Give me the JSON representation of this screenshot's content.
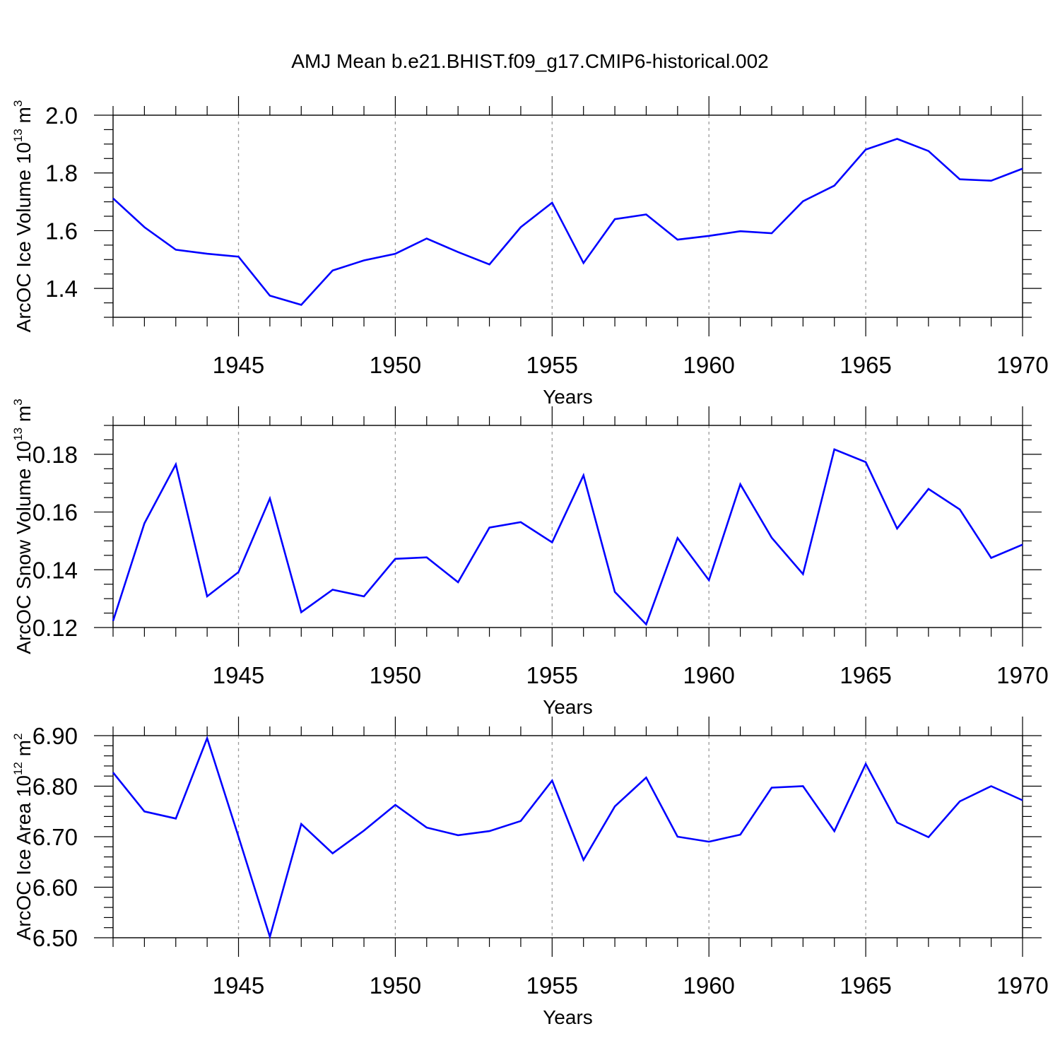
{
  "title": "AMJ Mean b.e21.BHIST.f09_g17.CMIP6-historical.002",
  "chart_data": [
    {
      "type": "line",
      "ylabel": {
        "text": "ArcOC Ice Volume 10",
        "sup": "13",
        "unit": " m",
        "unit_sup": "3"
      },
      "xlabel": "Years",
      "xlim": [
        1941,
        1970
      ],
      "ylim": [
        1.3,
        2.0
      ],
      "yticks": [
        1.4,
        1.6,
        1.8,
        2.0
      ],
      "ytick_labels": [
        "1.4",
        "1.6",
        "1.8",
        "2.0"
      ],
      "yminor": 0.05,
      "xticks": [
        1945,
        1950,
        1955,
        1960,
        1965,
        1970
      ],
      "xtick_labels": [
        "1945",
        "1950",
        "1955",
        "1960",
        "1965",
        "1970"
      ],
      "color": "#0000ff",
      "x": [
        1941,
        1942,
        1943,
        1944,
        1945,
        1946,
        1947,
        1948,
        1949,
        1950,
        1951,
        1952,
        1953,
        1954,
        1955,
        1956,
        1957,
        1958,
        1959,
        1960,
        1961,
        1962,
        1963,
        1964,
        1965,
        1966,
        1967,
        1968,
        1969,
        1970
      ],
      "values": [
        1.712,
        1.612,
        1.534,
        1.52,
        1.51,
        1.375,
        1.343,
        1.462,
        1.497,
        1.52,
        1.573,
        1.526,
        1.483,
        1.612,
        1.697,
        1.488,
        1.64,
        1.656,
        1.569,
        1.582,
        1.598,
        1.591,
        1.702,
        1.756,
        1.881,
        1.918,
        1.876,
        1.778,
        1.773,
        1.815
      ]
    },
    {
      "type": "line",
      "ylabel": {
        "text": "ArcOC Snow Volume 10",
        "sup": "13",
        "unit": " m",
        "unit_sup": "3"
      },
      "xlabel": "Years",
      "xlim": [
        1941,
        1970
      ],
      "ylim": [
        0.12,
        0.19
      ],
      "yticks": [
        0.12,
        0.14,
        0.16,
        0.18
      ],
      "ytick_labels": [
        "0.12",
        "0.14",
        "0.16",
        "0.18"
      ],
      "yminor": 0.005,
      "xticks": [
        1945,
        1950,
        1955,
        1960,
        1965,
        1970
      ],
      "xtick_labels": [
        "1945",
        "1950",
        "1955",
        "1960",
        "1965",
        "1970"
      ],
      "color": "#0000ff",
      "x": [
        1941,
        1942,
        1943,
        1944,
        1945,
        1946,
        1947,
        1948,
        1949,
        1950,
        1951,
        1952,
        1953,
        1954,
        1955,
        1956,
        1957,
        1958,
        1959,
        1960,
        1961,
        1962,
        1963,
        1964,
        1965,
        1966,
        1967,
        1968,
        1969,
        1970
      ],
      "values": [
        0.1223,
        0.1561,
        0.1765,
        0.1308,
        0.1392,
        0.1647,
        0.1253,
        0.1331,
        0.1308,
        0.1438,
        0.1443,
        0.1357,
        0.1546,
        0.1565,
        0.1495,
        0.1727,
        0.1323,
        0.1211,
        0.151,
        0.1364,
        0.1696,
        0.1511,
        0.1385,
        0.1817,
        0.1773,
        0.1543,
        0.168,
        0.1609,
        0.1441,
        0.1487
      ]
    },
    {
      "type": "line",
      "ylabel": {
        "text": "ArcOC Ice Area 10",
        "sup": "12",
        "unit": " m",
        "unit_sup": "2"
      },
      "xlabel": "Years",
      "xlim": [
        1941,
        1970
      ],
      "ylim": [
        6.5,
        6.9
      ],
      "yticks": [
        6.5,
        6.6,
        6.7,
        6.8,
        6.9
      ],
      "ytick_labels": [
        "6.50",
        "6.60",
        "6.70",
        "6.80",
        "6.90"
      ],
      "yminor": 0.02,
      "xticks": [
        1945,
        1950,
        1955,
        1960,
        1965,
        1970
      ],
      "xtick_labels": [
        "1945",
        "1950",
        "1955",
        "1960",
        "1965",
        "1970"
      ],
      "color": "#0000ff",
      "x": [
        1941,
        1942,
        1943,
        1944,
        1945,
        1946,
        1947,
        1948,
        1949,
        1950,
        1951,
        1952,
        1953,
        1954,
        1955,
        1956,
        1957,
        1958,
        1959,
        1960,
        1961,
        1962,
        1963,
        1964,
        1965,
        1966,
        1967,
        1968,
        1969,
        1970
      ],
      "values": [
        6.827,
        6.75,
        6.736,
        6.895,
        6.7,
        6.502,
        6.725,
        6.667,
        6.712,
        6.763,
        6.718,
        6.703,
        6.711,
        6.731,
        6.811,
        6.654,
        6.76,
        6.817,
        6.7,
        6.69,
        6.704,
        6.797,
        6.8,
        6.711,
        6.844,
        6.728,
        6.699,
        6.77,
        6.8,
        6.772
      ]
    }
  ]
}
